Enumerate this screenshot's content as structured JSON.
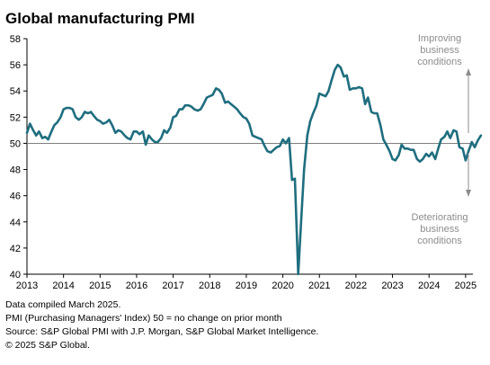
{
  "chart_data": {
    "type": "line",
    "title": "Global manufacturing PMI",
    "xlabel": "",
    "ylabel": "",
    "ylim": [
      40,
      58
    ],
    "yticks": [
      40,
      42,
      44,
      46,
      48,
      50,
      52,
      54,
      56,
      58
    ],
    "xlim": [
      2013.0,
      2025.2
    ],
    "xtick_labels": [
      "2013",
      "2014",
      "2015",
      "2016",
      "2017",
      "2018",
      "2019",
      "2020",
      "2021",
      "2022",
      "2023",
      "2024",
      "2025"
    ],
    "reference_line": 50,
    "grid": false,
    "legend": "none",
    "annotations": [
      {
        "text": [
          "Improving",
          "business",
          "conditions"
        ],
        "direction": "up"
      },
      {
        "text": [
          "Deteriorating",
          "business",
          "conditions"
        ],
        "direction": "down"
      }
    ],
    "series": [
      {
        "color": "#1f6e7f",
        "points": [
          [
            2013.0,
            50.8
          ],
          [
            2013.08,
            51.5
          ],
          [
            2013.17,
            51.0
          ],
          [
            2013.25,
            50.6
          ],
          [
            2013.33,
            50.9
          ],
          [
            2013.42,
            50.4
          ],
          [
            2013.5,
            50.5
          ],
          [
            2013.58,
            50.3
          ],
          [
            2013.67,
            50.9
          ],
          [
            2013.75,
            51.4
          ],
          [
            2013.83,
            51.6
          ],
          [
            2013.92,
            52.0
          ],
          [
            2014.0,
            52.6
          ],
          [
            2014.08,
            52.7
          ],
          [
            2014.17,
            52.7
          ],
          [
            2014.25,
            52.6
          ],
          [
            2014.33,
            52.0
          ],
          [
            2014.42,
            51.8
          ],
          [
            2014.5,
            52.0
          ],
          [
            2014.58,
            52.4
          ],
          [
            2014.67,
            52.3
          ],
          [
            2014.75,
            52.4
          ],
          [
            2014.83,
            52.1
          ],
          [
            2014.92,
            51.8
          ],
          [
            2015.0,
            51.7
          ],
          [
            2015.08,
            51.5
          ],
          [
            2015.17,
            51.6
          ],
          [
            2015.25,
            51.8
          ],
          [
            2015.33,
            51.4
          ],
          [
            2015.42,
            50.8
          ],
          [
            2015.5,
            51.0
          ],
          [
            2015.58,
            50.9
          ],
          [
            2015.67,
            50.6
          ],
          [
            2015.75,
            50.4
          ],
          [
            2015.83,
            50.3
          ],
          [
            2015.92,
            50.9
          ],
          [
            2016.0,
            50.9
          ],
          [
            2016.08,
            50.7
          ],
          [
            2016.17,
            50.9
          ],
          [
            2016.25,
            49.9
          ],
          [
            2016.33,
            50.6
          ],
          [
            2016.42,
            50.3
          ],
          [
            2016.5,
            50.1
          ],
          [
            2016.58,
            50.1
          ],
          [
            2016.67,
            50.4
          ],
          [
            2016.75,
            51.0
          ],
          [
            2016.83,
            50.8
          ],
          [
            2016.92,
            51.2
          ],
          [
            2017.0,
            52.0
          ],
          [
            2017.08,
            52.1
          ],
          [
            2017.17,
            52.6
          ],
          [
            2017.25,
            52.6
          ],
          [
            2017.33,
            52.9
          ],
          [
            2017.42,
            52.9
          ],
          [
            2017.5,
            52.8
          ],
          [
            2017.58,
            52.6
          ],
          [
            2017.67,
            52.5
          ],
          [
            2017.75,
            52.6
          ],
          [
            2017.83,
            53.0
          ],
          [
            2017.92,
            53.5
          ],
          [
            2018.0,
            53.6
          ],
          [
            2018.08,
            53.7
          ],
          [
            2018.17,
            54.2
          ],
          [
            2018.25,
            54.1
          ],
          [
            2018.33,
            53.8
          ],
          [
            2018.42,
            53.1
          ],
          [
            2018.5,
            53.2
          ],
          [
            2018.58,
            53.0
          ],
          [
            2018.67,
            52.8
          ],
          [
            2018.75,
            52.6
          ],
          [
            2018.83,
            52.3
          ],
          [
            2018.92,
            52.0
          ],
          [
            2019.0,
            51.9
          ],
          [
            2019.08,
            51.5
          ],
          [
            2019.17,
            50.6
          ],
          [
            2019.25,
            50.5
          ],
          [
            2019.33,
            50.4
          ],
          [
            2019.42,
            50.3
          ],
          [
            2019.5,
            49.8
          ],
          [
            2019.58,
            49.4
          ],
          [
            2019.67,
            49.3
          ],
          [
            2019.75,
            49.5
          ],
          [
            2019.83,
            49.7
          ],
          [
            2019.92,
            49.8
          ],
          [
            2020.0,
            50.3
          ],
          [
            2020.08,
            50.0
          ],
          [
            2020.17,
            50.4
          ],
          [
            2020.25,
            47.2
          ],
          [
            2020.33,
            47.3
          ],
          [
            2020.42,
            40.0
          ],
          [
            2020.5,
            44.0
          ],
          [
            2020.58,
            48.0
          ],
          [
            2020.67,
            50.6
          ],
          [
            2020.75,
            51.7
          ],
          [
            2020.83,
            52.3
          ],
          [
            2020.92,
            52.9
          ],
          [
            2021.0,
            53.8
          ],
          [
            2021.08,
            53.7
          ],
          [
            2021.17,
            53.6
          ],
          [
            2021.25,
            54.0
          ],
          [
            2021.33,
            54.8
          ],
          [
            2021.42,
            55.6
          ],
          [
            2021.5,
            56.0
          ],
          [
            2021.58,
            55.8
          ],
          [
            2021.67,
            55.1
          ],
          [
            2021.75,
            55.2
          ],
          [
            2021.83,
            54.1
          ],
          [
            2021.92,
            54.2
          ],
          [
            2022.0,
            54.2
          ],
          [
            2022.08,
            54.3
          ],
          [
            2022.17,
            54.2
          ],
          [
            2022.25,
            53.0
          ],
          [
            2022.33,
            53.5
          ],
          [
            2022.42,
            52.4
          ],
          [
            2022.5,
            52.3
          ],
          [
            2022.58,
            52.3
          ],
          [
            2022.67,
            51.4
          ],
          [
            2022.75,
            50.3
          ],
          [
            2022.83,
            49.9
          ],
          [
            2022.92,
            49.4
          ],
          [
            2023.0,
            48.8
          ],
          [
            2023.08,
            48.7
          ],
          [
            2023.17,
            49.1
          ],
          [
            2023.25,
            49.9
          ],
          [
            2023.33,
            49.6
          ],
          [
            2023.42,
            49.6
          ],
          [
            2023.5,
            49.5
          ],
          [
            2023.58,
            49.5
          ],
          [
            2023.67,
            48.8
          ],
          [
            2023.75,
            48.6
          ],
          [
            2023.83,
            48.8
          ],
          [
            2023.92,
            49.2
          ],
          [
            2024.0,
            49.0
          ],
          [
            2024.08,
            49.3
          ],
          [
            2024.17,
            48.8
          ],
          [
            2024.25,
            49.6
          ],
          [
            2024.33,
            50.3
          ],
          [
            2024.42,
            50.5
          ],
          [
            2024.5,
            50.9
          ],
          [
            2024.58,
            50.4
          ],
          [
            2024.67,
            51.0
          ],
          [
            2024.75,
            50.9
          ],
          [
            2024.83,
            49.7
          ],
          [
            2024.92,
            49.6
          ],
          [
            2025.0,
            48.7
          ],
          [
            2025.08,
            49.4
          ],
          [
            2025.17,
            50.1
          ],
          [
            2025.25,
            49.7
          ],
          [
            2025.33,
            50.2
          ],
          [
            2025.42,
            50.6
          ]
        ]
      }
    ]
  },
  "footnotes": {
    "line1": "Data compiled March 2025.",
    "line2": "PMI (Purchasing Managers' Index) 50 = no change on prior month",
    "line3": "Source: S&P Global  PMI with J.P. Morgan, S&P Global Market Intelligence.",
    "line4": "© 2025 S&P Global."
  },
  "colors": {
    "line": "#1f6e7f",
    "axis": "#000000",
    "reference": "#7f7f7f",
    "annotation": "#8c8c8c"
  }
}
